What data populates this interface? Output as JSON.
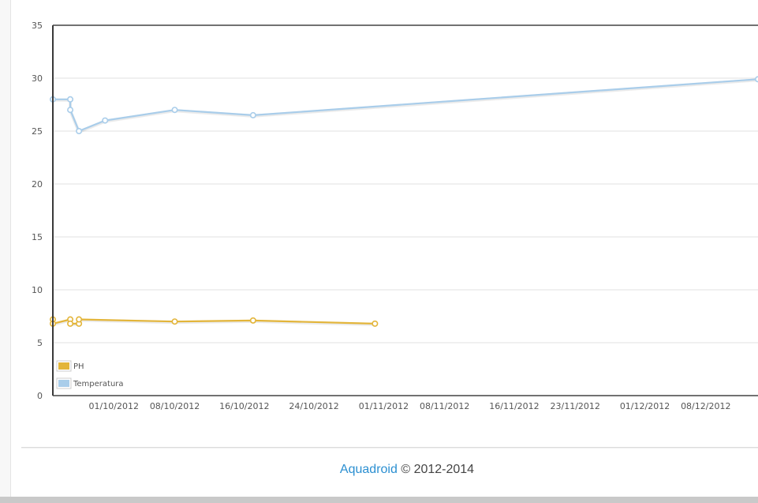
{
  "chart_data": {
    "type": "line",
    "title": "",
    "xlabel": "",
    "ylabel": "",
    "ylim": [
      0,
      35
    ],
    "xlim": [
      "2012-09-24",
      "2012-12-14"
    ],
    "y_ticks": [
      "0",
      "5",
      "10",
      "15",
      "20",
      "25",
      "30",
      "35"
    ],
    "x_ticks": [
      {
        "date": "2012-10-01",
        "label": "01/10/2012"
      },
      {
        "date": "2012-10-08",
        "label": "08/10/2012"
      },
      {
        "date": "2012-10-16",
        "label": "16/10/2012"
      },
      {
        "date": "2012-10-24",
        "label": "24/10/2012"
      },
      {
        "date": "2012-11-01",
        "label": "01/11/2012"
      },
      {
        "date": "2012-11-08",
        "label": "08/11/2012"
      },
      {
        "date": "2012-11-16",
        "label": "16/11/2012"
      },
      {
        "date": "2012-11-23",
        "label": "23/11/2012"
      },
      {
        "date": "2012-12-01",
        "label": "01/12/2012"
      },
      {
        "date": "2012-12-08",
        "label": "08/12/2012"
      }
    ],
    "grid": true,
    "legend_position": "bottom-left",
    "series": [
      {
        "name": "PH",
        "color": "#e3b53a",
        "points": [
          {
            "x": "2012-09-24",
            "y": 7.2
          },
          {
            "x": "2012-09-24",
            "y": 6.8
          },
          {
            "x": "2012-09-26",
            "y": 7.2
          },
          {
            "x": "2012-09-26",
            "y": 6.8
          },
          {
            "x": "2012-09-27",
            "y": 6.8
          },
          {
            "x": "2012-09-27",
            "y": 7.2
          },
          {
            "x": "2012-10-08",
            "y": 7.0
          },
          {
            "x": "2012-10-17",
            "y": 7.1
          },
          {
            "x": "2012-10-31",
            "y": 6.8
          }
        ]
      },
      {
        "name": "Temperatura",
        "color": "#a9cdea",
        "points": [
          {
            "x": "2012-09-24",
            "y": 28
          },
          {
            "x": "2012-09-26",
            "y": 28
          },
          {
            "x": "2012-09-26",
            "y": 27
          },
          {
            "x": "2012-09-27",
            "y": 25
          },
          {
            "x": "2012-09-30",
            "y": 26
          },
          {
            "x": "2012-10-08",
            "y": 27
          },
          {
            "x": "2012-10-17",
            "y": 26.5
          },
          {
            "x": "2012-12-14",
            "y": 29.9
          }
        ]
      }
    ]
  },
  "footer": {
    "brand": "Aquadroid",
    "copyright": "© 2012-2014"
  }
}
